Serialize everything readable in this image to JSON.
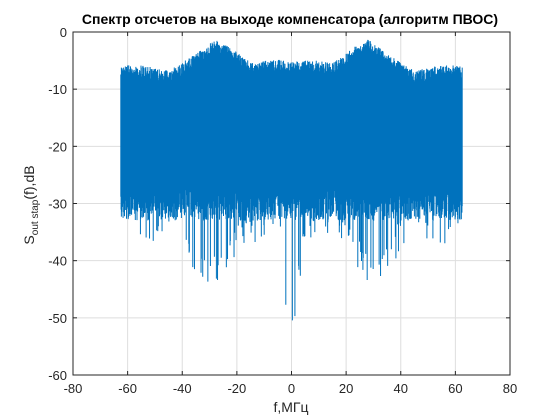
{
  "chart_data": {
    "type": "line",
    "title": "Спектр отсчетов на выходе компенсатора (алгоритм ПВОС)",
    "xlabel": "f,МГц",
    "ylabel": {
      "main": "S",
      "sub": "out stap",
      "rest": "(f),dB"
    },
    "xlim": [
      -80,
      80
    ],
    "ylim": [
      -60,
      0
    ],
    "xticks": [
      -80,
      -60,
      -40,
      -20,
      0,
      20,
      40,
      60,
      80
    ],
    "xtick_labels": [
      "-80",
      "-60",
      "-40",
      "-20",
      "0",
      "20",
      "40",
      "60",
      "80"
    ],
    "yticks": [
      -60,
      -50,
      -40,
      -30,
      -20,
      -10,
      0
    ],
    "ytick_labels": [
      "-60",
      "-50",
      "-40",
      "-30",
      "-20",
      "-10",
      "0"
    ],
    "grid": true,
    "series": [
      {
        "color": "#0072BD",
        "x_range": [
          -62.5,
          62.5
        ],
        "approx_envelope": {
          "x": [
            -62.5,
            -55,
            -45,
            -35,
            -28,
            -22,
            -15,
            -5,
            0,
            5,
            15,
            22,
            28,
            35,
            45,
            55,
            62.5
          ],
          "y_upper": [
            -7,
            -7,
            -8,
            -5,
            -2.5,
            -4,
            -6.5,
            -6,
            -6.5,
            -6,
            -6.5,
            -4,
            -2.5,
            -5,
            -8,
            -7,
            -7
          ],
          "y_lower": [
            -33,
            -38,
            -35,
            -42,
            -45,
            -40,
            -37,
            -36,
            -57,
            -36,
            -37,
            -40,
            -45,
            -42,
            -35,
            -38,
            -33
          ]
        }
      }
    ]
  }
}
